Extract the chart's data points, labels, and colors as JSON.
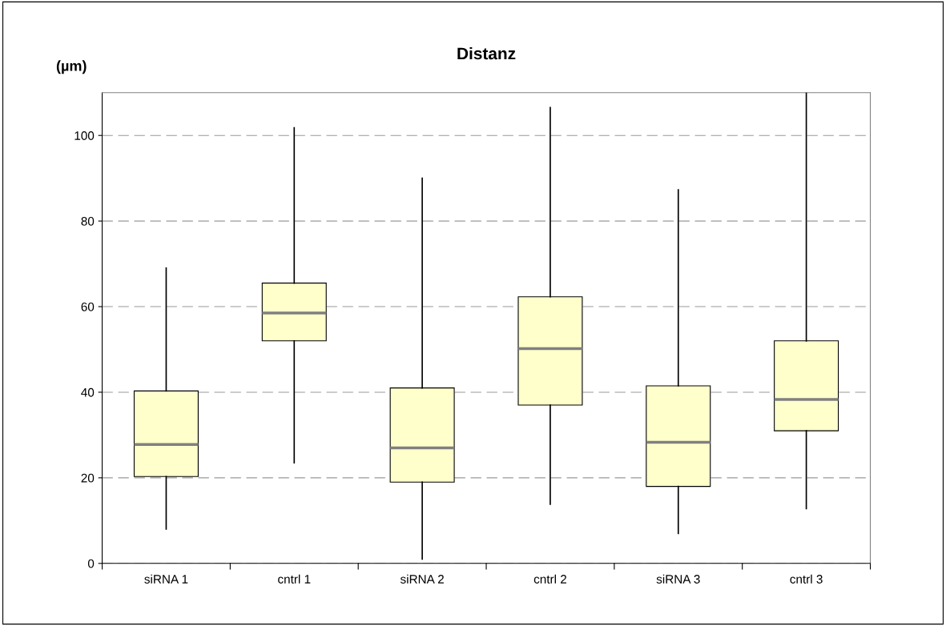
{
  "chart_data": {
    "type": "box",
    "title": "Distanz",
    "ylabel": "(µm)",
    "categories": [
      "siRNA 1",
      "cntrl 1",
      "siRNA 2",
      "cntrl 2",
      "siRNA 3",
      "cntrl 3"
    ],
    "boxes": [
      {
        "low": 8,
        "q1": 20.3,
        "median": 27.8,
        "q3": 40.3,
        "high": 69
      },
      {
        "low": 23.5,
        "q1": 52,
        "median": 58.5,
        "q3": 65.5,
        "high": 101.8
      },
      {
        "low": 1,
        "q1": 19,
        "median": 27,
        "q3": 41,
        "high": 90
      },
      {
        "low": 13.8,
        "q1": 37,
        "median": 50.2,
        "q3": 62.3,
        "high": 106.5
      },
      {
        "low": 7,
        "q1": 18,
        "median": 28.3,
        "q3": 41.5,
        "high": 87.3
      },
      {
        "low": 12.8,
        "q1": 31,
        "median": 38.3,
        "q3": 52,
        "high": 110
      }
    ],
    "color": "#ffffcc",
    "ylim": [
      0,
      110
    ],
    "yticks": [
      0,
      20,
      40,
      60,
      80,
      100
    ],
    "grid": "y",
    "line_style": "dashed"
  }
}
